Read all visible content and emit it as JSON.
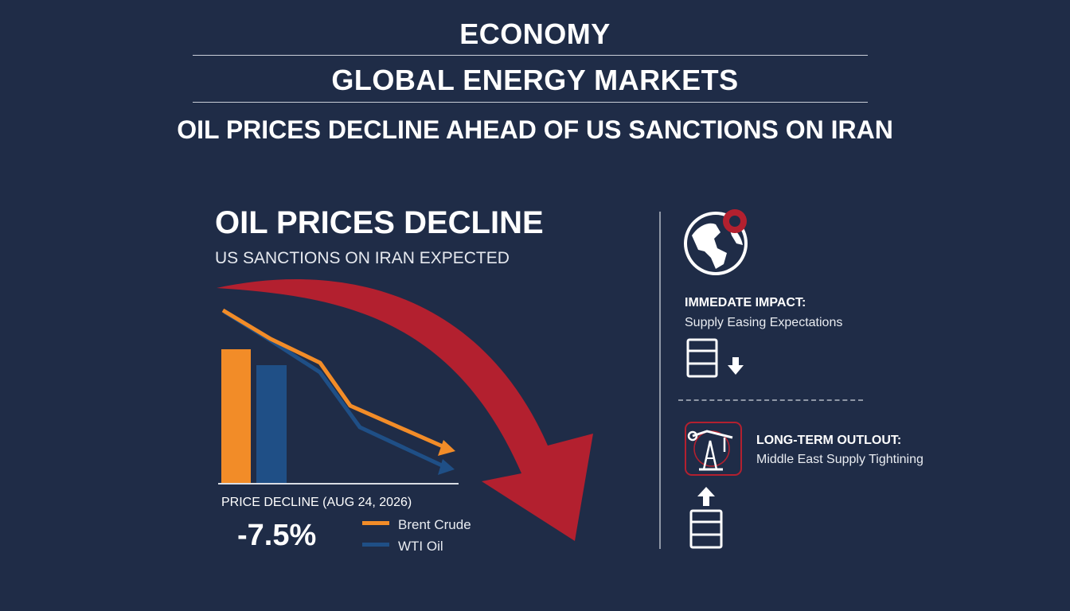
{
  "header": {
    "section": "ECONOMY",
    "category": "GLOBAL ENERGY MARKETS",
    "headline": "OIL PRICES DECLINE AHEAD OF US SANCTIONS ON IRAN"
  },
  "main": {
    "title": "OIL PRICES DECLINE",
    "subtitle": "US SANCTIONS ON IRAN EXPECTED",
    "price_decline_label": "PRICE DECLINE (AUG 24, 2026)",
    "price_decline_value": "-7.5%",
    "legend": [
      {
        "label": "Brent Crude",
        "color": "#f28c28"
      },
      {
        "label": "WTI Oil",
        "color": "#1f4f86"
      }
    ]
  },
  "side": {
    "immediate_title": "IMMEDATE IMPACT:",
    "immediate_sub": "Supply Easing Expectations",
    "long_title": "LONG-TERM OUTLOUT:",
    "long_sub": "Middle East Supply Tightining"
  },
  "colors": {
    "background": "#1f2c47",
    "accent_red": "#b3202f",
    "brent": "#f28c28",
    "wti": "#1f4f86"
  }
}
